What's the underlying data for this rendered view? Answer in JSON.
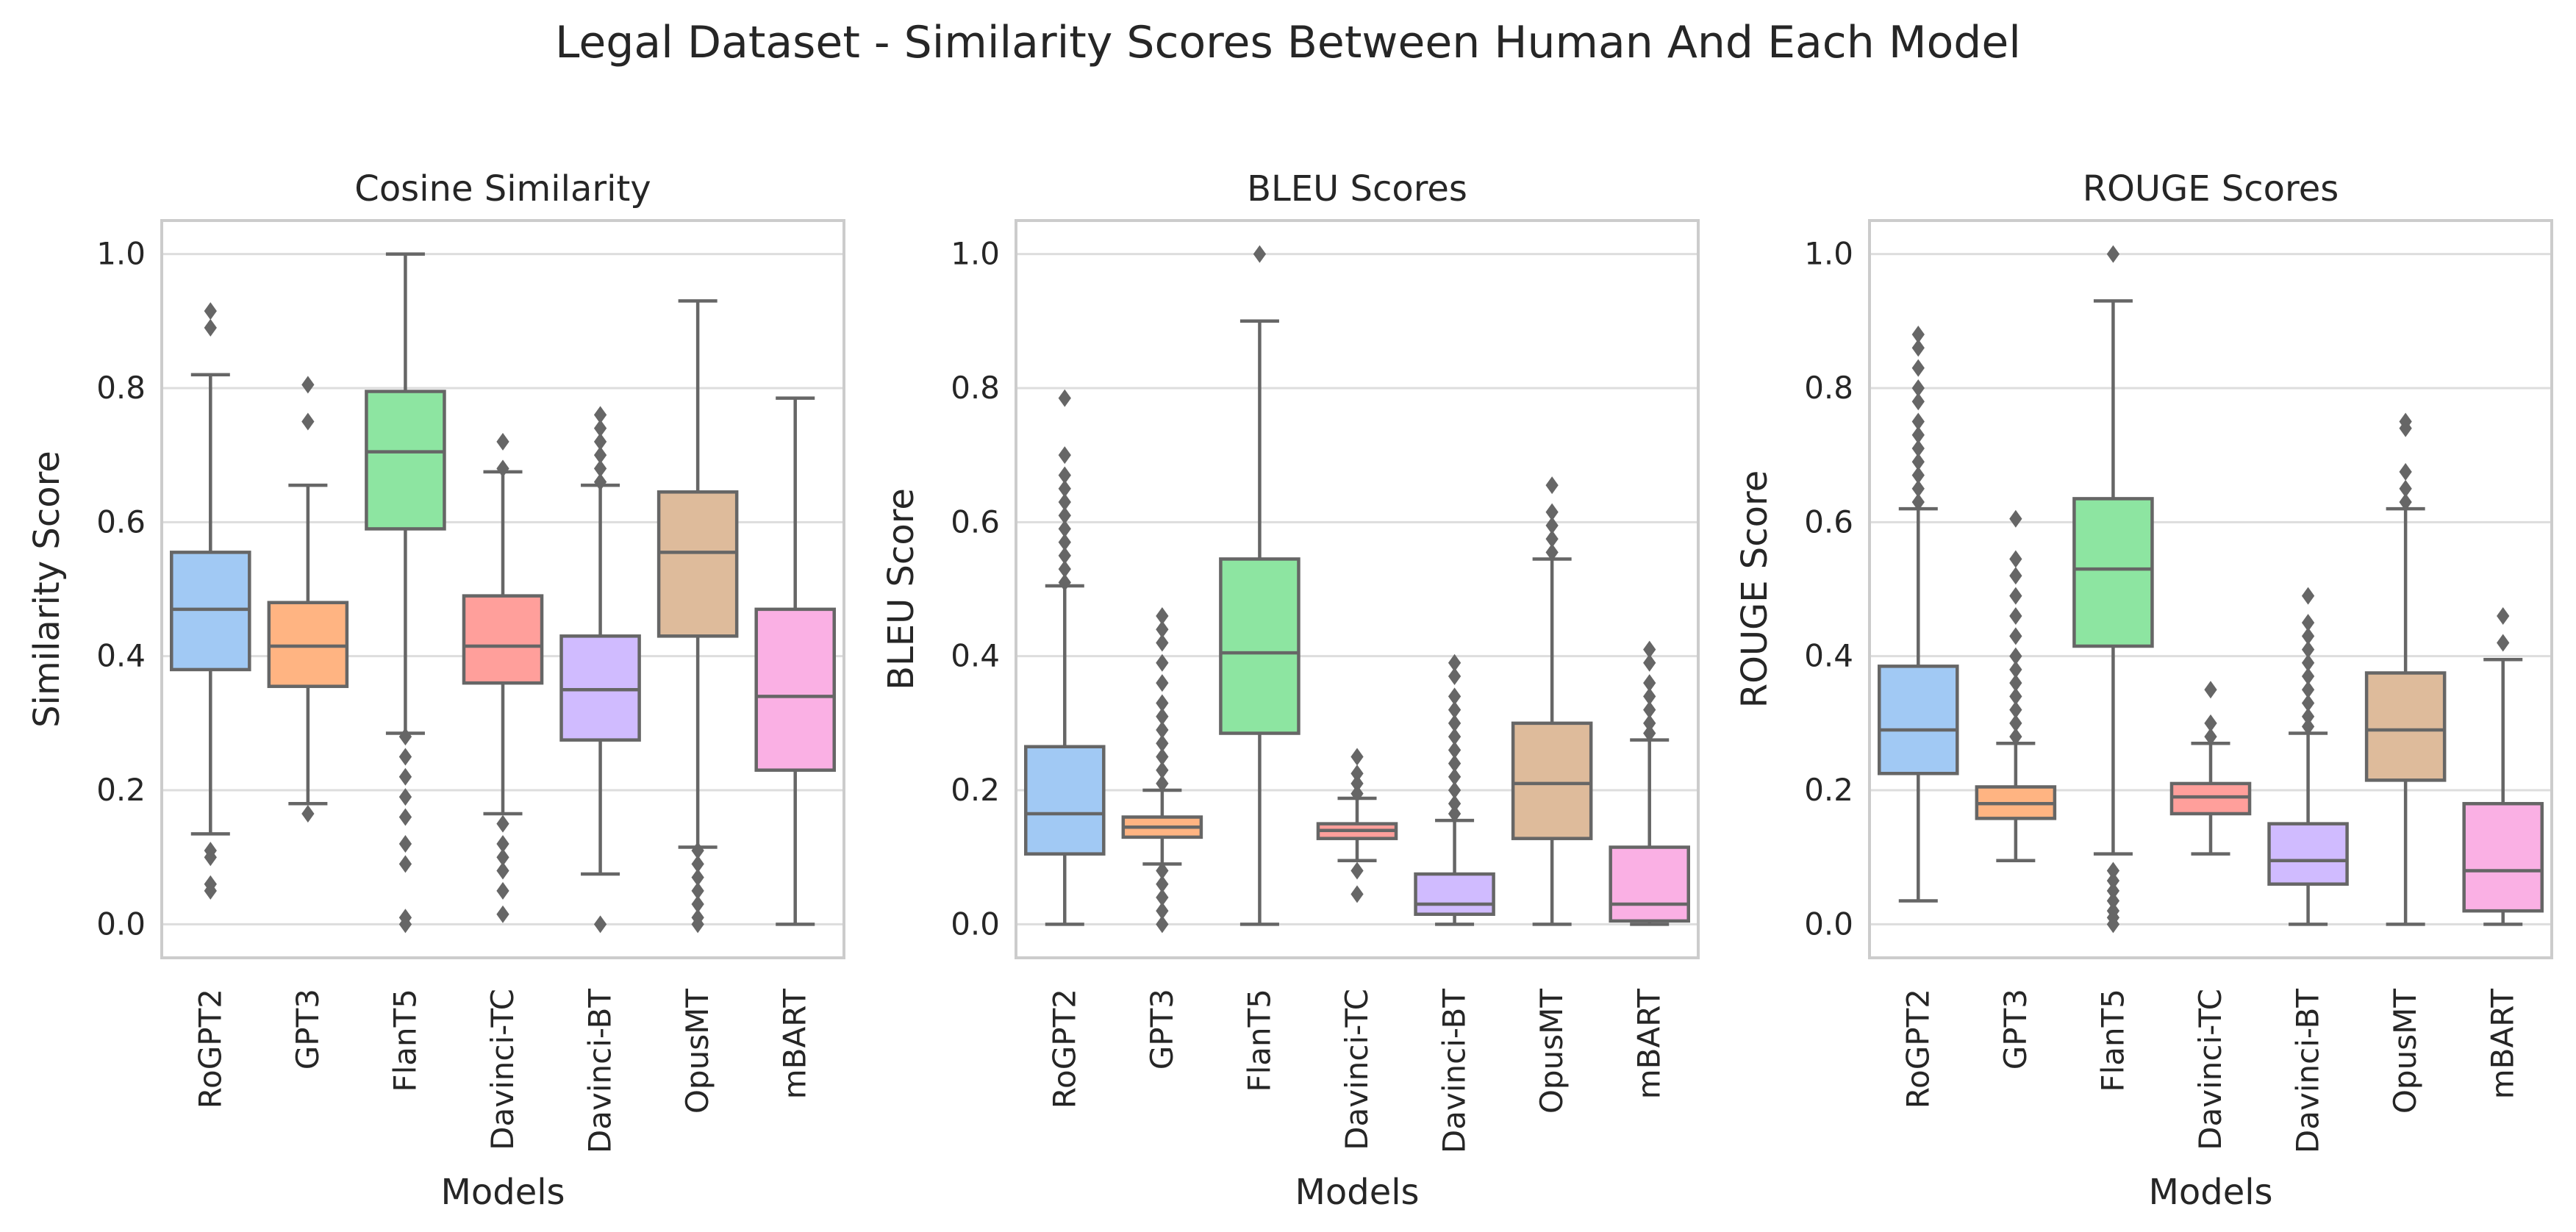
{
  "suptitle": "Legal Dataset - Similarity Scores Between Human And Each Model",
  "chart_data": [
    {
      "type": "box",
      "title": "Cosine Similarity",
      "xlabel": "Models",
      "ylabel": "Similarity Score",
      "ylim": [
        -0.05,
        1.05
      ],
      "yticks": [
        "0.0",
        "0.2",
        "0.4",
        "0.6",
        "0.8",
        "1.0"
      ],
      "grid": true,
      "categories": [
        "RoGPT2",
        "GPT3",
        "FlanT5",
        "Davinci-TC",
        "Davinci-BT",
        "OpusMT",
        "mBART"
      ],
      "colors": [
        "#a1c9f4",
        "#ffb482",
        "#8de5a1",
        "#ff9f9b",
        "#d0bbff",
        "#debb9b",
        "#fab0e4"
      ],
      "boxes": [
        {
          "whislo": 0.135,
          "q1": 0.38,
          "med": 0.47,
          "q3": 0.555,
          "whishi": 0.82,
          "fliers": [
            0.05,
            0.06,
            0.1,
            0.11,
            0.89,
            0.915
          ]
        },
        {
          "whislo": 0.18,
          "q1": 0.355,
          "med": 0.415,
          "q3": 0.48,
          "whishi": 0.655,
          "fliers": [
            0.165,
            0.75,
            0.805
          ]
        },
        {
          "whislo": 0.285,
          "q1": 0.59,
          "med": 0.705,
          "q3": 0.795,
          "whishi": 1.0,
          "fliers": [
            0.0,
            0.01,
            0.09,
            0.12,
            0.16,
            0.19,
            0.22,
            0.25,
            0.28
          ]
        },
        {
          "whislo": 0.165,
          "q1": 0.36,
          "med": 0.415,
          "q3": 0.49,
          "whishi": 0.675,
          "fliers": [
            0.015,
            0.05,
            0.08,
            0.1,
            0.12,
            0.15,
            0.68,
            0.72
          ]
        },
        {
          "whislo": 0.075,
          "q1": 0.275,
          "med": 0.35,
          "q3": 0.43,
          "whishi": 0.655,
          "fliers": [
            0.0,
            0.66,
            0.68,
            0.7,
            0.72,
            0.74,
            0.76
          ]
        },
        {
          "whislo": 0.115,
          "q1": 0.43,
          "med": 0.555,
          "q3": 0.645,
          "whishi": 0.93,
          "fliers": [
            0.0,
            0.01,
            0.03,
            0.05,
            0.07,
            0.09,
            0.11
          ]
        },
        {
          "whislo": 0.0,
          "q1": 0.23,
          "med": 0.34,
          "q3": 0.47,
          "whishi": 0.785,
          "fliers": []
        }
      ]
    },
    {
      "type": "box",
      "title": "BLEU Scores",
      "xlabel": "Models",
      "ylabel": "BLEU Score",
      "ylim": [
        -0.05,
        1.05
      ],
      "yticks": [
        "0.0",
        "0.2",
        "0.4",
        "0.6",
        "0.8",
        "1.0"
      ],
      "grid": true,
      "categories": [
        "RoGPT2",
        "GPT3",
        "FlanT5",
        "Davinci-TC",
        "Davinci-BT",
        "OpusMT",
        "mBART"
      ],
      "colors": [
        "#a1c9f4",
        "#ffb482",
        "#8de5a1",
        "#ff9f9b",
        "#d0bbff",
        "#debb9b",
        "#fab0e4"
      ],
      "boxes": [
        {
          "whislo": 0.0,
          "q1": 0.105,
          "med": 0.165,
          "q3": 0.265,
          "whishi": 0.505,
          "fliers": [
            0.51,
            0.53,
            0.55,
            0.57,
            0.59,
            0.61,
            0.63,
            0.65,
            0.67,
            0.7,
            0.785
          ]
        },
        {
          "whislo": 0.09,
          "q1": 0.13,
          "med": 0.145,
          "q3": 0.16,
          "whishi": 0.2,
          "fliers": [
            0.0,
            0.02,
            0.04,
            0.06,
            0.08,
            0.21,
            0.23,
            0.25,
            0.27,
            0.29,
            0.31,
            0.33,
            0.36,
            0.39,
            0.42,
            0.44,
            0.46
          ]
        },
        {
          "whislo": 0.0,
          "q1": 0.285,
          "med": 0.405,
          "q3": 0.545,
          "whishi": 0.9,
          "fliers": [
            1.0
          ]
        },
        {
          "whislo": 0.095,
          "q1": 0.128,
          "med": 0.14,
          "q3": 0.15,
          "whishi": 0.188,
          "fliers": [
            0.045,
            0.08,
            0.195,
            0.21,
            0.225,
            0.25
          ]
        },
        {
          "whislo": 0.0,
          "q1": 0.015,
          "med": 0.03,
          "q3": 0.075,
          "whishi": 0.155,
          "fliers": [
            0.165,
            0.18,
            0.2,
            0.22,
            0.24,
            0.26,
            0.28,
            0.3,
            0.32,
            0.34,
            0.37,
            0.39
          ]
        },
        {
          "whislo": 0.0,
          "q1": 0.128,
          "med": 0.21,
          "q3": 0.3,
          "whishi": 0.545,
          "fliers": [
            0.555,
            0.575,
            0.595,
            0.615,
            0.655
          ]
        },
        {
          "whislo": 0.0,
          "q1": 0.005,
          "med": 0.03,
          "q3": 0.115,
          "whishi": 0.275,
          "fliers": [
            0.285,
            0.3,
            0.32,
            0.34,
            0.36,
            0.39,
            0.41
          ]
        }
      ]
    },
    {
      "type": "box",
      "title": "ROUGE Scores",
      "xlabel": "Models",
      "ylabel": "ROUGE Score",
      "ylim": [
        -0.05,
        1.05
      ],
      "yticks": [
        "0.0",
        "0.2",
        "0.4",
        "0.6",
        "0.8",
        "1.0"
      ],
      "grid": true,
      "categories": [
        "RoGPT2",
        "GPT3",
        "FlanT5",
        "Davinci-TC",
        "Davinci-BT",
        "OpusMT",
        "mBART"
      ],
      "colors": [
        "#a1c9f4",
        "#ffb482",
        "#8de5a1",
        "#ff9f9b",
        "#d0bbff",
        "#debb9b",
        "#fab0e4"
      ],
      "boxes": [
        {
          "whislo": 0.035,
          "q1": 0.225,
          "med": 0.29,
          "q3": 0.385,
          "whishi": 0.62,
          "fliers": [
            0.63,
            0.65,
            0.67,
            0.69,
            0.71,
            0.73,
            0.75,
            0.78,
            0.8,
            0.83,
            0.86,
            0.88
          ]
        },
        {
          "whislo": 0.095,
          "q1": 0.158,
          "med": 0.18,
          "q3": 0.205,
          "whishi": 0.27,
          "fliers": [
            0.28,
            0.3,
            0.32,
            0.34,
            0.36,
            0.38,
            0.4,
            0.43,
            0.46,
            0.49,
            0.52,
            0.545,
            0.605
          ]
        },
        {
          "whislo": 0.105,
          "q1": 0.415,
          "med": 0.53,
          "q3": 0.635,
          "whishi": 0.93,
          "fliers": [
            0.0,
            0.01,
            0.02,
            0.035,
            0.05,
            0.065,
            0.08,
            1.0
          ]
        },
        {
          "whislo": 0.105,
          "q1": 0.165,
          "med": 0.19,
          "q3": 0.21,
          "whishi": 0.27,
          "fliers": [
            0.28,
            0.3,
            0.35
          ]
        },
        {
          "whislo": 0.0,
          "q1": 0.06,
          "med": 0.095,
          "q3": 0.15,
          "whishi": 0.285,
          "fliers": [
            0.295,
            0.31,
            0.33,
            0.35,
            0.37,
            0.39,
            0.41,
            0.43,
            0.45,
            0.49
          ]
        },
        {
          "whislo": 0.0,
          "q1": 0.215,
          "med": 0.29,
          "q3": 0.375,
          "whishi": 0.62,
          "fliers": [
            0.63,
            0.65,
            0.675,
            0.74,
            0.75
          ]
        },
        {
          "whislo": 0.0,
          "q1": 0.02,
          "med": 0.08,
          "q3": 0.18,
          "whishi": 0.395,
          "fliers": [
            0.42,
            0.46
          ]
        }
      ]
    }
  ]
}
